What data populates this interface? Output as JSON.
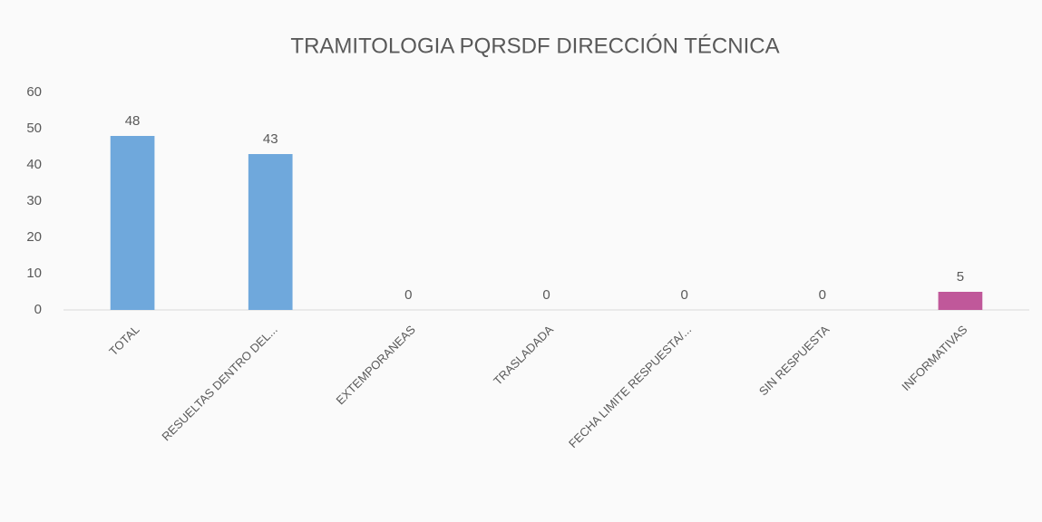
{
  "chart_data": {
    "type": "bar",
    "title": "TRAMITOLOGIA PQRSDF DIRECCIÓN TÉCNICA",
    "categories": [
      "TOTAL",
      "RESUELTAS DENTRO DEL...",
      "EXTEMPORANEAS",
      "TRASLADADA",
      "FECHA LIMITE RESPUESTA/...",
      "SIN RESPUESTA",
      "INFORMATIVAS"
    ],
    "values": [
      48,
      43,
      0,
      0,
      0,
      0,
      5
    ],
    "colors": [
      "#6fa8dc",
      "#6fa8dc",
      "#6fa8dc",
      "#6fa8dc",
      "#6fa8dc",
      "#6fa8dc",
      "#c0589a"
    ],
    "ylim": [
      0,
      60
    ],
    "yticks": [
      0,
      10,
      20,
      30,
      40,
      50,
      60
    ],
    "grid": false
  }
}
